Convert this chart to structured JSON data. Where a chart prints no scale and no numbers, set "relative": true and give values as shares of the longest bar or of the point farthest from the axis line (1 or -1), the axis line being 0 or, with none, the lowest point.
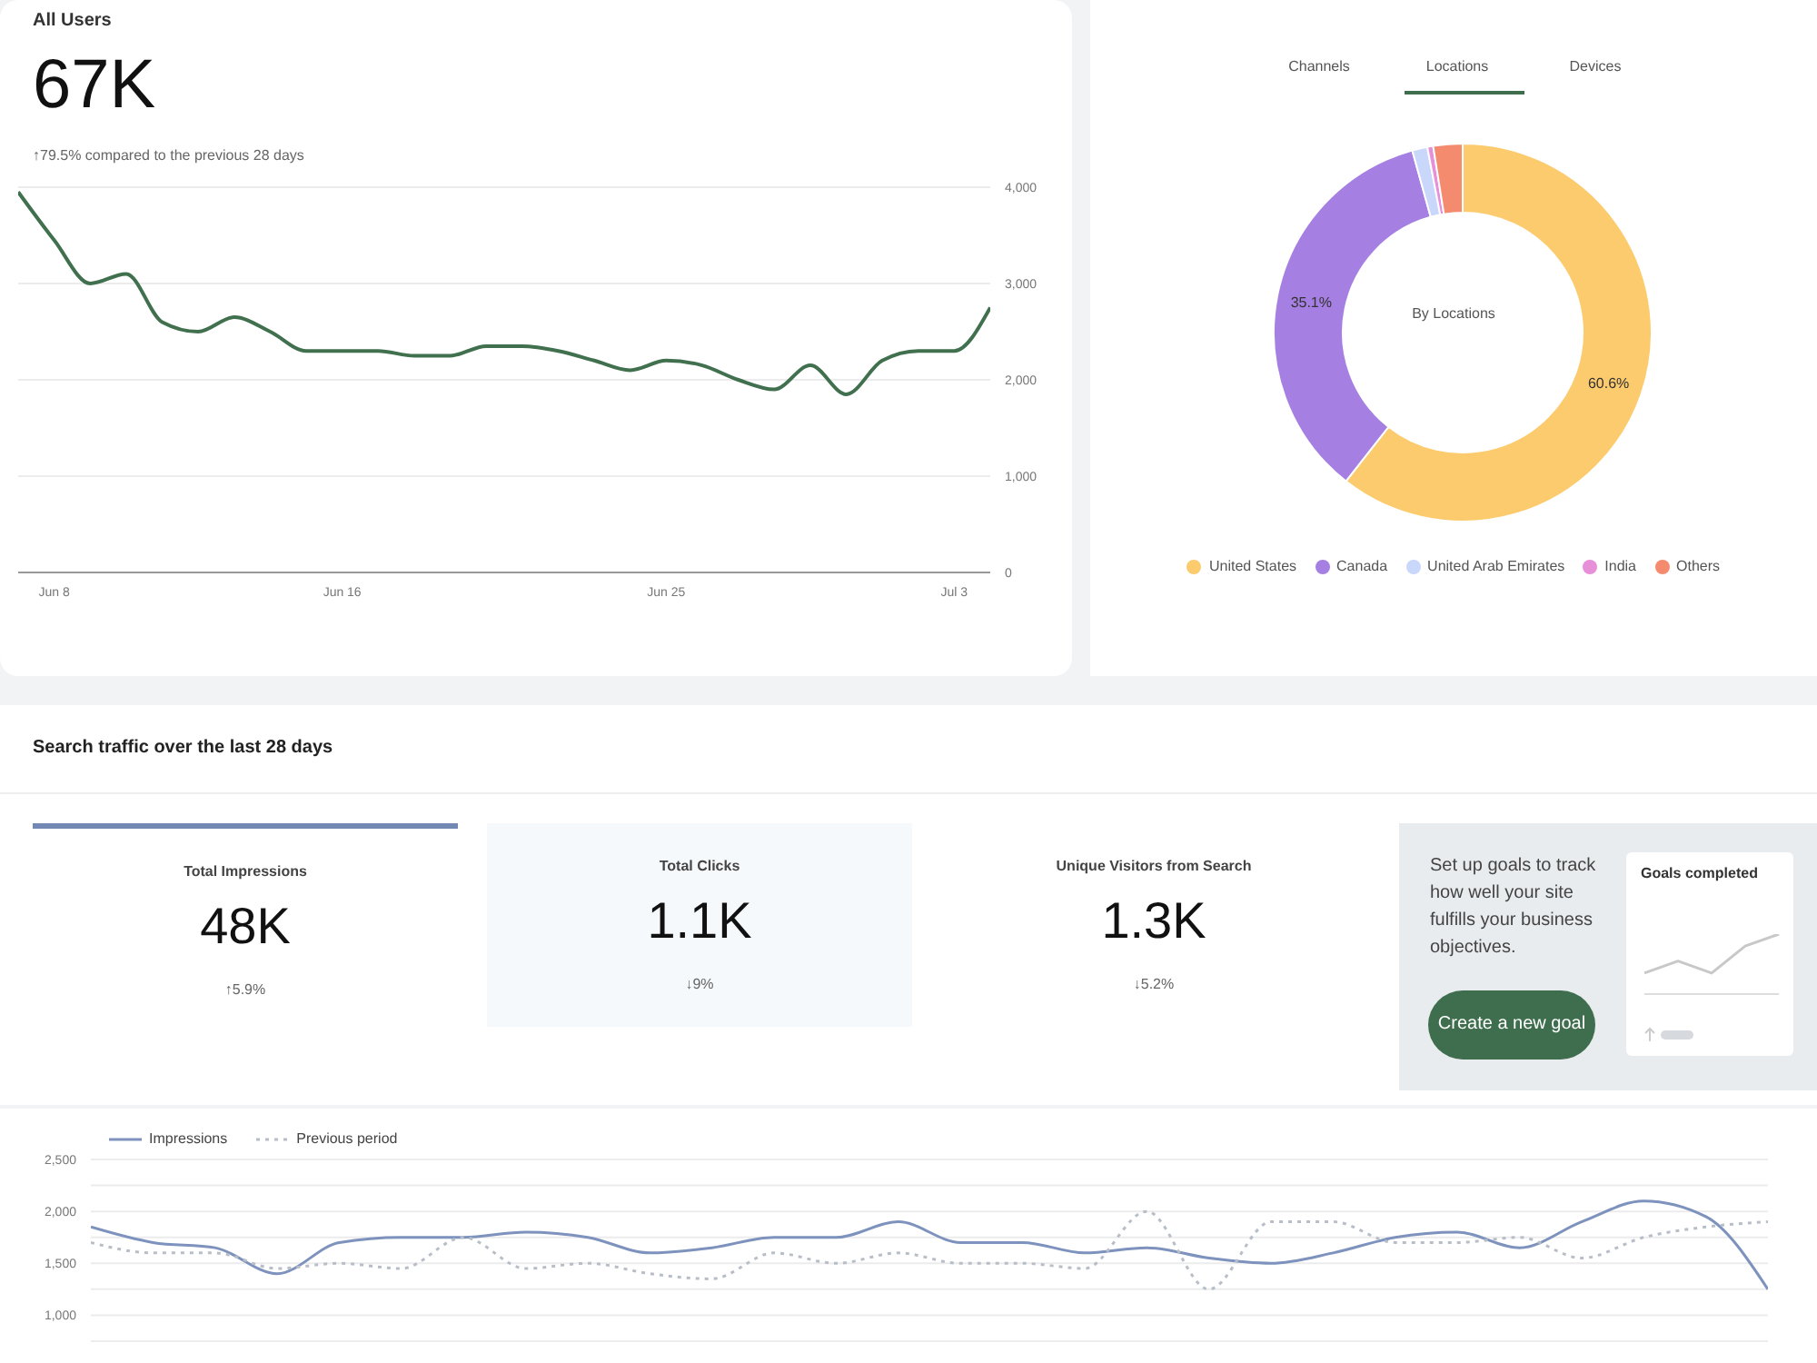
{
  "chart_data": [
    {
      "type": "line",
      "title": "All Users",
      "subtitle": "67K",
      "annotations": [
        "↑79.5% compared to the previous 28 days"
      ],
      "x": [
        "--06-07",
        "--06-08",
        "--06-09",
        "--06-10",
        "--06-11",
        "--06-12",
        "--06-13",
        "--06-14",
        "--06-15",
        "--06-16",
        "--06-17",
        "--06-18",
        "--06-19",
        "--06-20",
        "--06-21",
        "--06-22",
        "--06-23",
        "--06-24",
        "--06-25",
        "--06-26",
        "--06-27",
        "--06-28",
        "--06-29",
        "--06-30",
        "--07-01",
        "--07-02",
        "--07-03",
        "--07-04"
      ],
      "series": [
        {
          "color": "#41704f",
          "values": [
            3950,
            3450,
            3000,
            3100,
            2600,
            2500,
            2650,
            2500,
            2300,
            2300,
            2300,
            2250,
            2250,
            2350,
            2350,
            2300,
            2200,
            2100,
            2200,
            2150,
            2000,
            1900,
            2150,
            1850,
            2200,
            2300,
            2300,
            2750
          ]
        }
      ],
      "xlim": [
        "--06-07",
        "--07-04"
      ],
      "xticks": [
        {
          "value": "--06-08",
          "label": "Jun 8"
        },
        {
          "value": "--06-16",
          "label": "Jun 16"
        },
        {
          "value": "--06-25",
          "label": "Jun 25"
        },
        {
          "value": "--07-03",
          "label": "Jul 3"
        }
      ],
      "ylim": [
        0,
        4000
      ],
      "yticks": [
        0,
        {
          "value": 1000,
          "label": "1,000"
        },
        {
          "value": 2000,
          "label": "2,000"
        },
        {
          "value": 3000,
          "label": "3,000"
        },
        {
          "value": 4000,
          "label": "4,000"
        }
      ],
      "grid": "y",
      "marker": "none",
      "line_style": "solid",
      "legend": false
    },
    {
      "type": "donut",
      "title": "By Locations",
      "annotations": [
        "Channels",
        "Locations",
        "Devices"
      ],
      "categories": [
        "United States",
        "Canada",
        "United Arab Emirates",
        "India",
        "Others"
      ],
      "values": [
        60.6,
        35.1,
        1.3,
        0.5,
        2.5
      ],
      "value_labels": [
        "60.6%",
        "35.1%",
        null,
        null,
        null
      ],
      "colors": [
        "#fccb6e",
        "#a67fe3",
        "#c9d7fa",
        "#e78fd9",
        "#f58b6e"
      ],
      "legend": "bottom"
    },
    {
      "type": "other",
      "title": "Search traffic over the last 28 days",
      "annotations": [
        "Total Impressions",
        "48K",
        "↑5.9%",
        "Total Clicks",
        "1.1K",
        "↓9%",
        "Unique Visitors from Search",
        "1.3K",
        "↓5.2%",
        "Set up goals to track how well your site fulfills your business objectives.",
        "Create a new goal"
      ]
    },
    {
      "type": "line",
      "categories": [
        null,
        null,
        null,
        null,
        null,
        null,
        null,
        null,
        null,
        null,
        null,
        null,
        null,
        null,
        null,
        null,
        null,
        null,
        null,
        null,
        null,
        null,
        null,
        null,
        null,
        null,
        null,
        null
      ],
      "series": [
        {
          "name": "Impressions",
          "color": "#7d92bd",
          "line_style": "solid",
          "values": [
            1850,
            1700,
            1650,
            1400,
            1700,
            1750,
            1750,
            1800,
            1750,
            1600,
            1650,
            1750,
            1750,
            1900,
            1700,
            1700,
            1600,
            1650,
            1550,
            1500,
            1600,
            1750,
            1800,
            1650,
            1900,
            2100,
            1950,
            1250
          ]
        },
        {
          "name": "Previous period",
          "color": "#b8bec8",
          "line_style": "dotted",
          "values": [
            1700,
            1600,
            1600,
            1450,
            1500,
            1450,
            1750,
            1450,
            1500,
            1400,
            1350,
            1600,
            1500,
            1600,
            1500,
            1500,
            1450,
            2000,
            1250,
            1900,
            1900,
            1700,
            1700,
            1750,
            1550,
            1750,
            1850,
            1900
          ]
        }
      ],
      "ylim": [
        750,
        2500
      ],
      "yticks": [
        {
          "value": 750,
          "label": null
        },
        {
          "value": 1000,
          "label": "1,000"
        },
        {
          "value": 1250,
          "label": null
        },
        {
          "value": 1500,
          "label": "1,500"
        },
        {
          "value": 1750,
          "label": null
        },
        {
          "value": 2000,
          "label": "2,000"
        },
        {
          "value": 2250,
          "label": null
        },
        {
          "value": 2500,
          "label": "2,500"
        }
      ],
      "tick_labels": "y",
      "grid": "y",
      "marker": "none",
      "legend": "top left"
    },
    {
      "type": "line",
      "title": "Goals completed",
      "relative": true,
      "categories": [
        null,
        null,
        null,
        null,
        null
      ],
      "series": [
        {
          "color": "#c8c8c8",
          "values": [
            0.35,
            0.55,
            0.35,
            0.8,
            1
          ]
        }
      ],
      "tick_labels": false,
      "marker": "none"
    }
  ]
}
